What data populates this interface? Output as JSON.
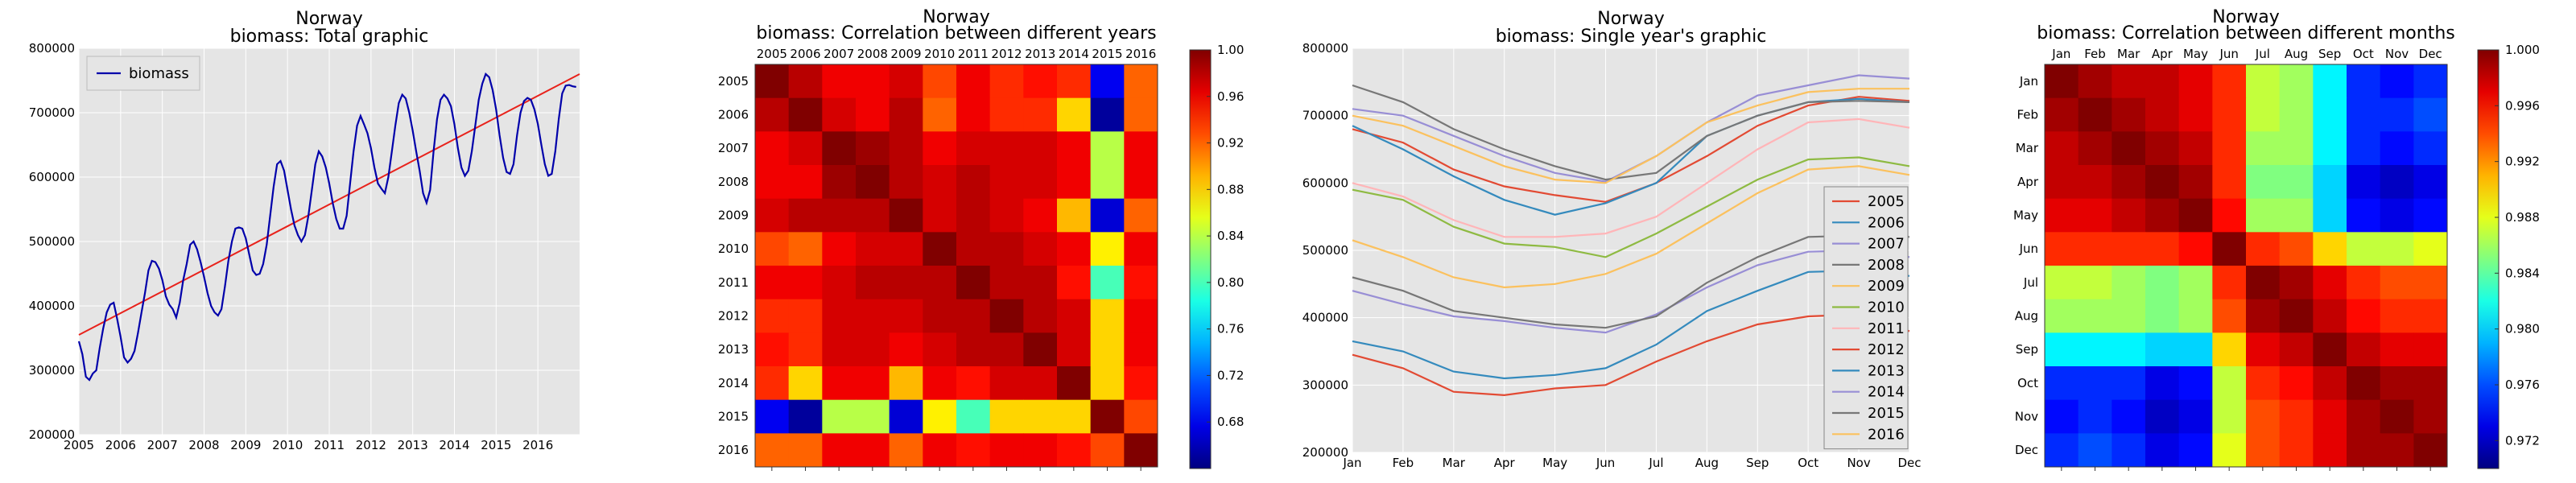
{
  "chart_data": [
    {
      "type": "line",
      "title": "Norway",
      "subtitle": "biomass: Total graphic",
      "xlim": [
        2005,
        2017
      ],
      "ylim": [
        200000,
        800000
      ],
      "xticks": [
        "2005",
        "2006",
        "2007",
        "2008",
        "2009",
        "2010",
        "2011",
        "2012",
        "2013",
        "2014",
        "2015",
        "2016"
      ],
      "yticks": [
        "200000",
        "300000",
        "400000",
        "500000",
        "600000",
        "700000",
        "800000"
      ],
      "grid": true,
      "legend": "top-left",
      "colors": {
        "series": "#0000aa",
        "trend": "#e8221b",
        "plot_bg": "#e5e5e5"
      },
      "series": [
        {
          "name": "biomass",
          "x": [
            2005.0,
            2005.083,
            2005.167,
            2005.25,
            2005.333,
            2005.417,
            2005.5,
            2005.583,
            2005.667,
            2005.75,
            2005.833,
            2005.917,
            2006.0,
            2006.083,
            2006.167,
            2006.25,
            2006.333,
            2006.417,
            2006.5,
            2006.583,
            2006.667,
            2006.75,
            2006.833,
            2006.917,
            2007.0,
            2007.083,
            2007.167,
            2007.25,
            2007.333,
            2007.417,
            2007.5,
            2007.583,
            2007.667,
            2007.75,
            2007.833,
            2007.917,
            2008.0,
            2008.083,
            2008.167,
            2008.25,
            2008.333,
            2008.417,
            2008.5,
            2008.583,
            2008.667,
            2008.75,
            2008.833,
            2008.917,
            2009.0,
            2009.083,
            2009.167,
            2009.25,
            2009.333,
            2009.417,
            2009.5,
            2009.583,
            2009.667,
            2009.75,
            2009.833,
            2009.917,
            2010.0,
            2010.083,
            2010.167,
            2010.25,
            2010.333,
            2010.417,
            2010.5,
            2010.583,
            2010.667,
            2010.75,
            2010.833,
            2010.917,
            2011.0,
            2011.083,
            2011.167,
            2011.25,
            2011.333,
            2011.417,
            2011.5,
            2011.583,
            2011.667,
            2011.75,
            2011.833,
            2011.917,
            2012.0,
            2012.083,
            2012.167,
            2012.25,
            2012.333,
            2012.417,
            2012.5,
            2012.583,
            2012.667,
            2012.75,
            2012.833,
            2012.917,
            2013.0,
            2013.083,
            2013.167,
            2013.25,
            2013.333,
            2013.417,
            2013.5,
            2013.583,
            2013.667,
            2013.75,
            2013.833,
            2013.917,
            2014.0,
            2014.083,
            2014.167,
            2014.25,
            2014.333,
            2014.417,
            2014.5,
            2014.583,
            2014.667,
            2014.75,
            2014.833,
            2014.917,
            2015.0,
            2015.083,
            2015.167,
            2015.25,
            2015.333,
            2015.417,
            2015.5,
            2015.583,
            2015.667,
            2015.75,
            2015.833,
            2015.917,
            2016.0,
            2016.083,
            2016.167,
            2016.25,
            2016.333,
            2016.417,
            2016.5,
            2016.583,
            2016.667,
            2016.75,
            2016.833,
            2016.917
          ],
          "values": [
            345000,
            325000,
            290000,
            285000,
            295000,
            300000,
            335000,
            365000,
            390000,
            402000,
            405000,
            380000,
            352000,
            320000,
            312000,
            318000,
            330000,
            358000,
            390000,
            420000,
            455000,
            470000,
            468000,
            458000,
            440000,
            415000,
            402000,
            395000,
            382000,
            405000,
            440000,
            465000,
            495000,
            500000,
            488000,
            468000,
            445000,
            420000,
            400000,
            390000,
            385000,
            395000,
            430000,
            470000,
            500000,
            520000,
            522000,
            520000,
            505000,
            480000,
            455000,
            448000,
            450000,
            465000,
            495000,
            540000,
            585000,
            620000,
            625000,
            610000,
            580000,
            550000,
            525000,
            510000,
            500000,
            510000,
            540000,
            580000,
            620000,
            640000,
            632000,
            615000,
            590000,
            560000,
            535000,
            520000,
            520000,
            540000,
            590000,
            640000,
            680000,
            695000,
            682000,
            668000,
            645000,
            615000,
            590000,
            582000,
            575000,
            600000,
            640000,
            680000,
            715000,
            728000,
            722000,
            700000,
            672000,
            640000,
            610000,
            575000,
            560000,
            580000,
            640000,
            690000,
            720000,
            728000,
            722000,
            710000,
            682000,
            645000,
            615000,
            602000,
            610000,
            640000,
            680000,
            720000,
            745000,
            760000,
            755000,
            735000,
            705000,
            665000,
            630000,
            608000,
            605000,
            620000,
            665000,
            700000,
            718000,
            723000,
            720000,
            705000,
            682000,
            650000,
            620000,
            602000,
            605000,
            640000,
            690000,
            730000,
            742000,
            743000,
            741000,
            740000
          ]
        }
      ],
      "trend": {
        "x": [
          2005,
          2017
        ],
        "values": [
          355000,
          760000
        ]
      }
    },
    {
      "type": "heatmap",
      "title": "Norway",
      "subtitle": "biomass: Correlation between different years",
      "labels": [
        "2005",
        "2006",
        "2007",
        "2008",
        "2009",
        "2010",
        "2011",
        "2012",
        "2013",
        "2014",
        "2015",
        "2016"
      ],
      "colorbar": {
        "min": 0.64,
        "max": 1.0,
        "ticks": [
          "0.68",
          "0.72",
          "0.76",
          "0.80",
          "0.84",
          "0.88",
          "0.92",
          "0.96",
          "1.00"
        ]
      },
      "values": [
        [
          1.0,
          0.98,
          0.96,
          0.96,
          0.97,
          0.93,
          0.96,
          0.94,
          0.95,
          0.94,
          0.68,
          0.92
        ],
        [
          0.98,
          1.0,
          0.97,
          0.96,
          0.98,
          0.92,
          0.96,
          0.94,
          0.94,
          0.88,
          0.65,
          0.92
        ],
        [
          0.96,
          0.97,
          1.0,
          0.99,
          0.98,
          0.96,
          0.97,
          0.97,
          0.97,
          0.96,
          0.84,
          0.96
        ],
        [
          0.96,
          0.96,
          0.99,
          1.0,
          0.98,
          0.97,
          0.98,
          0.97,
          0.97,
          0.96,
          0.84,
          0.96
        ],
        [
          0.97,
          0.98,
          0.98,
          0.98,
          1.0,
          0.97,
          0.98,
          0.97,
          0.96,
          0.89,
          0.67,
          0.92
        ],
        [
          0.93,
          0.92,
          0.96,
          0.97,
          0.97,
          1.0,
          0.98,
          0.98,
          0.97,
          0.96,
          0.87,
          0.96
        ],
        [
          0.96,
          0.96,
          0.97,
          0.98,
          0.98,
          0.98,
          1.0,
          0.98,
          0.98,
          0.95,
          0.8,
          0.95
        ],
        [
          0.94,
          0.94,
          0.97,
          0.97,
          0.97,
          0.98,
          0.98,
          1.0,
          0.98,
          0.97,
          0.88,
          0.96
        ],
        [
          0.95,
          0.94,
          0.97,
          0.97,
          0.96,
          0.97,
          0.98,
          0.98,
          1.0,
          0.97,
          0.88,
          0.96
        ],
        [
          0.94,
          0.88,
          0.96,
          0.96,
          0.89,
          0.96,
          0.95,
          0.97,
          0.97,
          1.0,
          0.88,
          0.95
        ],
        [
          0.68,
          0.65,
          0.84,
          0.84,
          0.67,
          0.87,
          0.8,
          0.88,
          0.88,
          0.88,
          1.0,
          0.93
        ],
        [
          0.92,
          0.92,
          0.96,
          0.96,
          0.92,
          0.96,
          0.95,
          0.96,
          0.96,
          0.95,
          0.93,
          1.0
        ]
      ]
    },
    {
      "type": "line",
      "title": "Norway",
      "subtitle": "biomass: Single year's graphic",
      "categories": [
        "Jan",
        "Feb",
        "Mar",
        "Apr",
        "May",
        "Jun",
        "Jul",
        "Aug",
        "Sep",
        "Oct",
        "Nov",
        "Dec"
      ],
      "ylim": [
        200000,
        800000
      ],
      "yticks": [
        "200000",
        "300000",
        "400000",
        "500000",
        "600000",
        "700000",
        "800000"
      ],
      "grid": true,
      "legend": "lower-right",
      "series": [
        {
          "name": "2005",
          "color": "#e24a33",
          "values": [
            345000,
            325000,
            290000,
            285000,
            295000,
            300000,
            335000,
            365000,
            390000,
            402000,
            405000,
            380000
          ]
        },
        {
          "name": "2006",
          "color": "#348abd",
          "values": [
            365000,
            350000,
            320000,
            310000,
            315000,
            325000,
            360000,
            410000,
            440000,
            468000,
            470000,
            462000
          ]
        },
        {
          "name": "2007",
          "color": "#988ed5",
          "values": [
            440000,
            420000,
            402000,
            395000,
            385000,
            378000,
            405000,
            445000,
            478000,
            498000,
            500000,
            490000
          ]
        },
        {
          "name": "2008",
          "color": "#777777",
          "values": [
            460000,
            440000,
            410000,
            400000,
            390000,
            385000,
            402000,
            452000,
            490000,
            520000,
            522000,
            520000
          ]
        },
        {
          "name": "2009",
          "color": "#fbc15e",
          "values": [
            515000,
            490000,
            460000,
            445000,
            450000,
            465000,
            495000,
            540000,
            585000,
            620000,
            625000,
            612000
          ]
        },
        {
          "name": "2010",
          "color": "#8eba42",
          "values": [
            590000,
            575000,
            535000,
            510000,
            505000,
            490000,
            525000,
            565000,
            605000,
            635000,
            638000,
            625000
          ]
        },
        {
          "name": "2011",
          "color": "#ffb5b8",
          "values": [
            600000,
            580000,
            545000,
            520000,
            520000,
            525000,
            550000,
            600000,
            650000,
            690000,
            695000,
            682000
          ]
        },
        {
          "name": "2012",
          "color": "#e24a33",
          "values": [
            680000,
            660000,
            620000,
            595000,
            582000,
            572000,
            600000,
            640000,
            685000,
            715000,
            728000,
            722000
          ]
        },
        {
          "name": "2013",
          "color": "#348abd",
          "values": [
            685000,
            650000,
            610000,
            575000,
            553000,
            570000,
            600000,
            670000,
            700000,
            720000,
            725000,
            720000
          ]
        },
        {
          "name": "2014",
          "color": "#988ed5",
          "values": [
            710000,
            700000,
            670000,
            640000,
            615000,
            602000,
            640000,
            690000,
            730000,
            745000,
            760000,
            755000
          ]
        },
        {
          "name": "2015",
          "color": "#777777",
          "values": [
            745000,
            720000,
            680000,
            650000,
            625000,
            605000,
            615000,
            670000,
            700000,
            720000,
            722000,
            720000
          ]
        },
        {
          "name": "2016",
          "color": "#fbc15e",
          "values": [
            700000,
            685000,
            655000,
            625000,
            605000,
            600000,
            640000,
            690000,
            715000,
            735000,
            740000,
            740000
          ]
        }
      ]
    },
    {
      "type": "heatmap",
      "title": "Norway",
      "subtitle": "biomass: Correlation between different months",
      "labels": [
        "Jan",
        "Feb",
        "Mar",
        "Apr",
        "May",
        "Jun",
        "Jul",
        "Aug",
        "Sep",
        "Oct",
        "Nov",
        "Dec"
      ],
      "colorbar": {
        "min": 0.97,
        "max": 1.0,
        "ticks": [
          "0.972",
          "0.976",
          "0.980",
          "0.984",
          "0.988",
          "0.992",
          "0.996",
          "1.000"
        ]
      },
      "values": [
        [
          1.0,
          0.999,
          0.998,
          0.998,
          0.997,
          0.995,
          0.987,
          0.986,
          0.981,
          0.975,
          0.974,
          0.975
        ],
        [
          0.999,
          1.0,
          0.999,
          0.998,
          0.997,
          0.995,
          0.987,
          0.986,
          0.981,
          0.975,
          0.975,
          0.976
        ],
        [
          0.998,
          0.999,
          1.0,
          0.999,
          0.998,
          0.995,
          0.986,
          0.986,
          0.981,
          0.975,
          0.974,
          0.975
        ],
        [
          0.998,
          0.998,
          0.999,
          1.0,
          0.999,
          0.995,
          0.985,
          0.985,
          0.98,
          0.973,
          0.972,
          0.973
        ],
        [
          0.997,
          0.997,
          0.998,
          0.999,
          1.0,
          0.996,
          0.986,
          0.986,
          0.98,
          0.974,
          0.973,
          0.974
        ],
        [
          0.995,
          0.995,
          0.995,
          0.995,
          0.996,
          1.0,
          0.995,
          0.994,
          0.99,
          0.987,
          0.987,
          0.988
        ],
        [
          0.987,
          0.987,
          0.986,
          0.985,
          0.986,
          0.995,
          1.0,
          0.999,
          0.997,
          0.995,
          0.994,
          0.994
        ],
        [
          0.986,
          0.986,
          0.986,
          0.985,
          0.986,
          0.994,
          0.999,
          1.0,
          0.998,
          0.996,
          0.995,
          0.995
        ],
        [
          0.981,
          0.981,
          0.981,
          0.98,
          0.98,
          0.99,
          0.997,
          0.998,
          1.0,
          0.998,
          0.997,
          0.997
        ],
        [
          0.975,
          0.975,
          0.975,
          0.973,
          0.974,
          0.987,
          0.995,
          0.996,
          0.998,
          1.0,
          0.999,
          0.999
        ],
        [
          0.974,
          0.975,
          0.974,
          0.972,
          0.973,
          0.987,
          0.994,
          0.995,
          0.997,
          0.999,
          1.0,
          0.999
        ],
        [
          0.975,
          0.976,
          0.975,
          0.973,
          0.974,
          0.988,
          0.994,
          0.995,
          0.997,
          0.999,
          0.999,
          1.0
        ]
      ]
    }
  ]
}
